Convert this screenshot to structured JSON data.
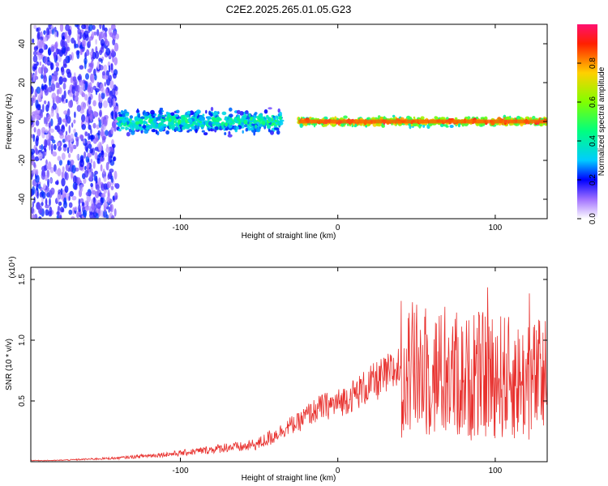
{
  "title": "C2E2.2025.265.01.05.G23",
  "chart_data": [
    {
      "type": "heatmap",
      "xlabel": "Height of straight line (km)",
      "ylabel": "Frequency (Hz)",
      "xlim": [
        -195,
        133
      ],
      "ylim": [
        -50,
        50
      ],
      "xticks": [
        -100,
        0,
        100
      ],
      "yticks": [
        -40,
        -20,
        0,
        20,
        40
      ],
      "colorbar": {
        "label": "Normalized spectral amplitude",
        "range": [
          0,
          1
        ],
        "ticks": [
          "0.0",
          "0.2",
          "0.4",
          "0.6",
          "0.8"
        ]
      },
      "bands": [
        {
          "x": [
            -195,
            -140
          ],
          "freq_half_width": 50,
          "level": 0.2
        },
        {
          "x": [
            -140,
            -35
          ],
          "freq_half_width": 8,
          "level": 0.35
        },
        {
          "x": [
            -25,
            133
          ],
          "freq_half_width": 3,
          "level": 0.75
        }
      ]
    },
    {
      "type": "line",
      "series": [
        {
          "color": "#e8312e"
        }
      ],
      "xlabel": "Height of straight line (km)",
      "ylabel": "SNR (10 * v/v)",
      "y_scale_label": "(x10⁴)",
      "xlim": [
        -195,
        133
      ],
      "ylim": [
        0,
        1.6
      ],
      "xticks": [
        -100,
        0,
        100
      ],
      "yticks": [
        "0.5",
        "1.0",
        "1.5"
      ],
      "x": [
        -195,
        -180,
        -160,
        -140,
        -120,
        -100,
        -80,
        -70,
        -60,
        -50,
        -40,
        -30,
        -25,
        -20,
        -10,
        0,
        10,
        20,
        30,
        40,
        50,
        60,
        70,
        80,
        90,
        100,
        110,
        120,
        133
      ],
      "values": [
        0.01,
        0.01,
        0.02,
        0.03,
        0.05,
        0.07,
        0.1,
        0.12,
        0.12,
        0.15,
        0.22,
        0.3,
        0.32,
        0.38,
        0.45,
        0.48,
        0.55,
        0.63,
        0.7,
        0.78,
        0.75,
        0.72,
        0.7,
        0.68,
        0.7,
        0.72,
        0.68,
        0.65,
        0.7
      ]
    }
  ]
}
